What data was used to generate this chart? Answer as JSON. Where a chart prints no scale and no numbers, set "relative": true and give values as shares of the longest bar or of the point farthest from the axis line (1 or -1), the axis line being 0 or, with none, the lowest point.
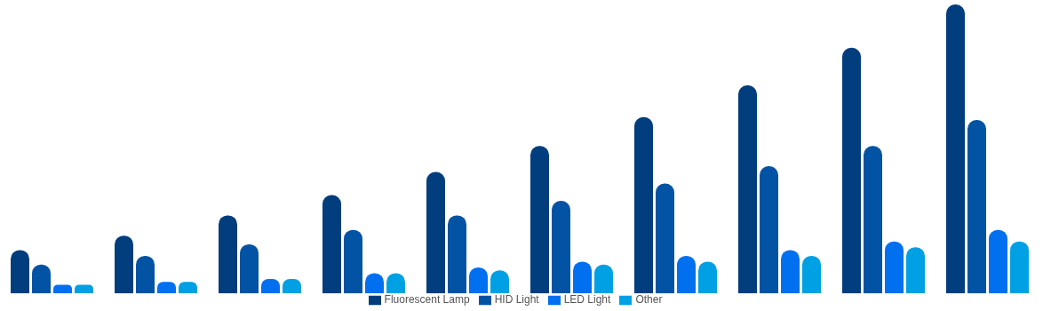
{
  "chart_data": {
    "type": "bar",
    "relative": true,
    "categories": [
      null,
      null,
      null,
      null,
      null,
      null,
      null,
      null,
      null,
      null
    ],
    "series": [
      {
        "name": "Fluorescent Lamp",
        "color": "#023e7d",
        "values": [
          0.15,
          0.2,
          0.27,
          0.34,
          0.42,
          0.51,
          0.61,
          0.72,
          0.85,
          1
        ]
      },
      {
        "name": "HID Light",
        "color": "#0353a4",
        "values": [
          0.1,
          0.13,
          0.17,
          0.22,
          0.27,
          0.32,
          0.38,
          0.44,
          0.51,
          0.6
        ]
      },
      {
        "name": "LED Light",
        "color": "#0070f0",
        "values": [
          0.03,
          0.04,
          0.05,
          0.07,
          0.09,
          0.11,
          0.13,
          0.15,
          0.18,
          0.22
        ]
      },
      {
        "name": "Other",
        "color": "#00a0e4",
        "values": [
          0.03,
          0.04,
          0.05,
          0.07,
          0.08,
          0.1,
          0.11,
          0.13,
          0.16,
          0.18
        ]
      }
    ],
    "legend": "bottom",
    "grid": false
  }
}
